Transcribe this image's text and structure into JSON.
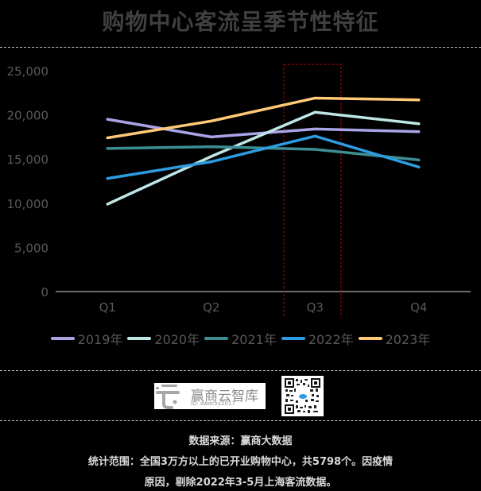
{
  "header": {
    "title": "购物中心客流呈季节性特征"
  },
  "chart_data": {
    "type": "line",
    "title": "购物中心客流呈季节性特征",
    "xlabel": "",
    "ylabel": "",
    "categories": [
      "Q1",
      "Q2",
      "Q3",
      "Q4"
    ],
    "y_ticks": [
      "0",
      "5,000",
      "10,000",
      "15,000",
      "20,000",
      "25,000"
    ],
    "ylim": [
      0,
      25000
    ],
    "grid": false,
    "legend_position": "bottom",
    "highlight": {
      "category": "Q3",
      "style": "red dashed box"
    },
    "series": [
      {
        "name": "2019年",
        "color": "#A9A4E6",
        "values": [
          19500,
          17500,
          18400,
          18100
        ]
      },
      {
        "name": "2020年",
        "color": "#BFE6E6",
        "values": [
          9900,
          15300,
          20300,
          19000
        ]
      },
      {
        "name": "2021年",
        "color": "#3D8E94",
        "values": [
          16200,
          16400,
          16100,
          14900
        ]
      },
      {
        "name": "2022年",
        "color": "#2E9CE0",
        "values": [
          12800,
          14700,
          17600,
          14100
        ]
      },
      {
        "name": "2023年",
        "color": "#FFC978",
        "values": [
          17400,
          19300,
          21900,
          21700
        ]
      }
    ]
  },
  "legend": {
    "items": [
      {
        "label": "2019年",
        "color": "#A9A4E6"
      },
      {
        "label": "2020年",
        "color": "#BFE6E6"
      },
      {
        "label": "2021年",
        "color": "#3D8E94"
      },
      {
        "label": "2022年",
        "color": "#2E9CE0"
      },
      {
        "label": "2023年",
        "color": "#FFC978"
      }
    ]
  },
  "branding": {
    "logo_name": "赢商云智库",
    "logo_id": "ID: swdcxy2017"
  },
  "footer": {
    "source": "数据来源：赢商大数据",
    "scope_line1": "统计范围：全国3万方以上的已开业购物中心，共5798个。因疫情",
    "scope_line2": "原因，剔除2022年3-5月上海客流数据。"
  }
}
